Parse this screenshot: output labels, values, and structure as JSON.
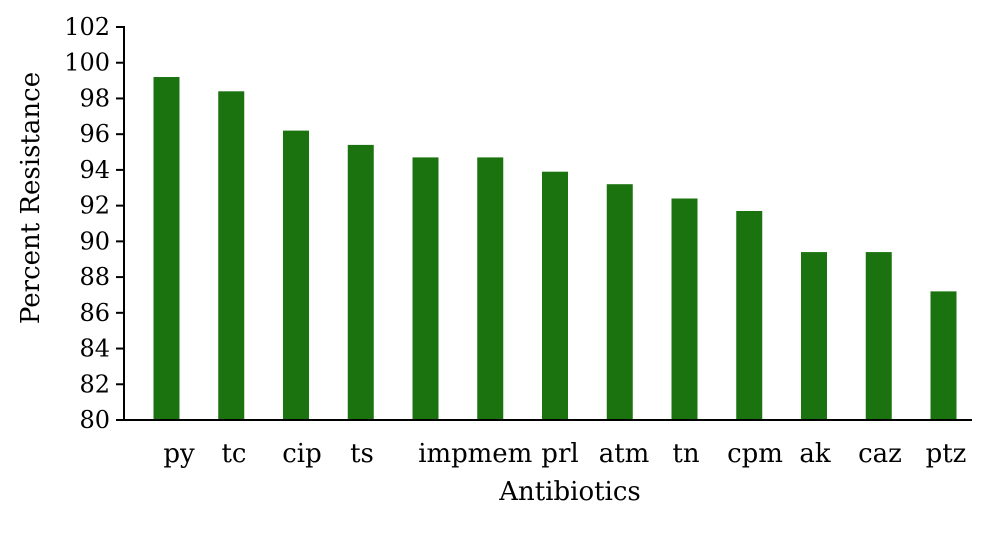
{
  "chart_data": {
    "type": "bar",
    "title": "",
    "xlabel": "Antibiotics",
    "ylabel": "Percent Resistance",
    "categories": [
      "py",
      "tc",
      "cip",
      "ts",
      "imp",
      "mem",
      "prl",
      "atm",
      "tn",
      "cpm",
      "ak",
      "caz",
      "ptz"
    ],
    "values": [
      99.2,
      98.4,
      96.2,
      95.4,
      94.7,
      94.7,
      93.9,
      93.2,
      92.4,
      91.7,
      89.4,
      89.4,
      87.2
    ],
    "ylim": [
      80,
      102
    ],
    "yticks": [
      "80",
      "82",
      "84",
      "86",
      "88",
      "90",
      "92",
      "94",
      "96",
      "98",
      "100",
      "102"
    ],
    "grid": false,
    "legend": "none",
    "bar_color": "#1a730f"
  }
}
